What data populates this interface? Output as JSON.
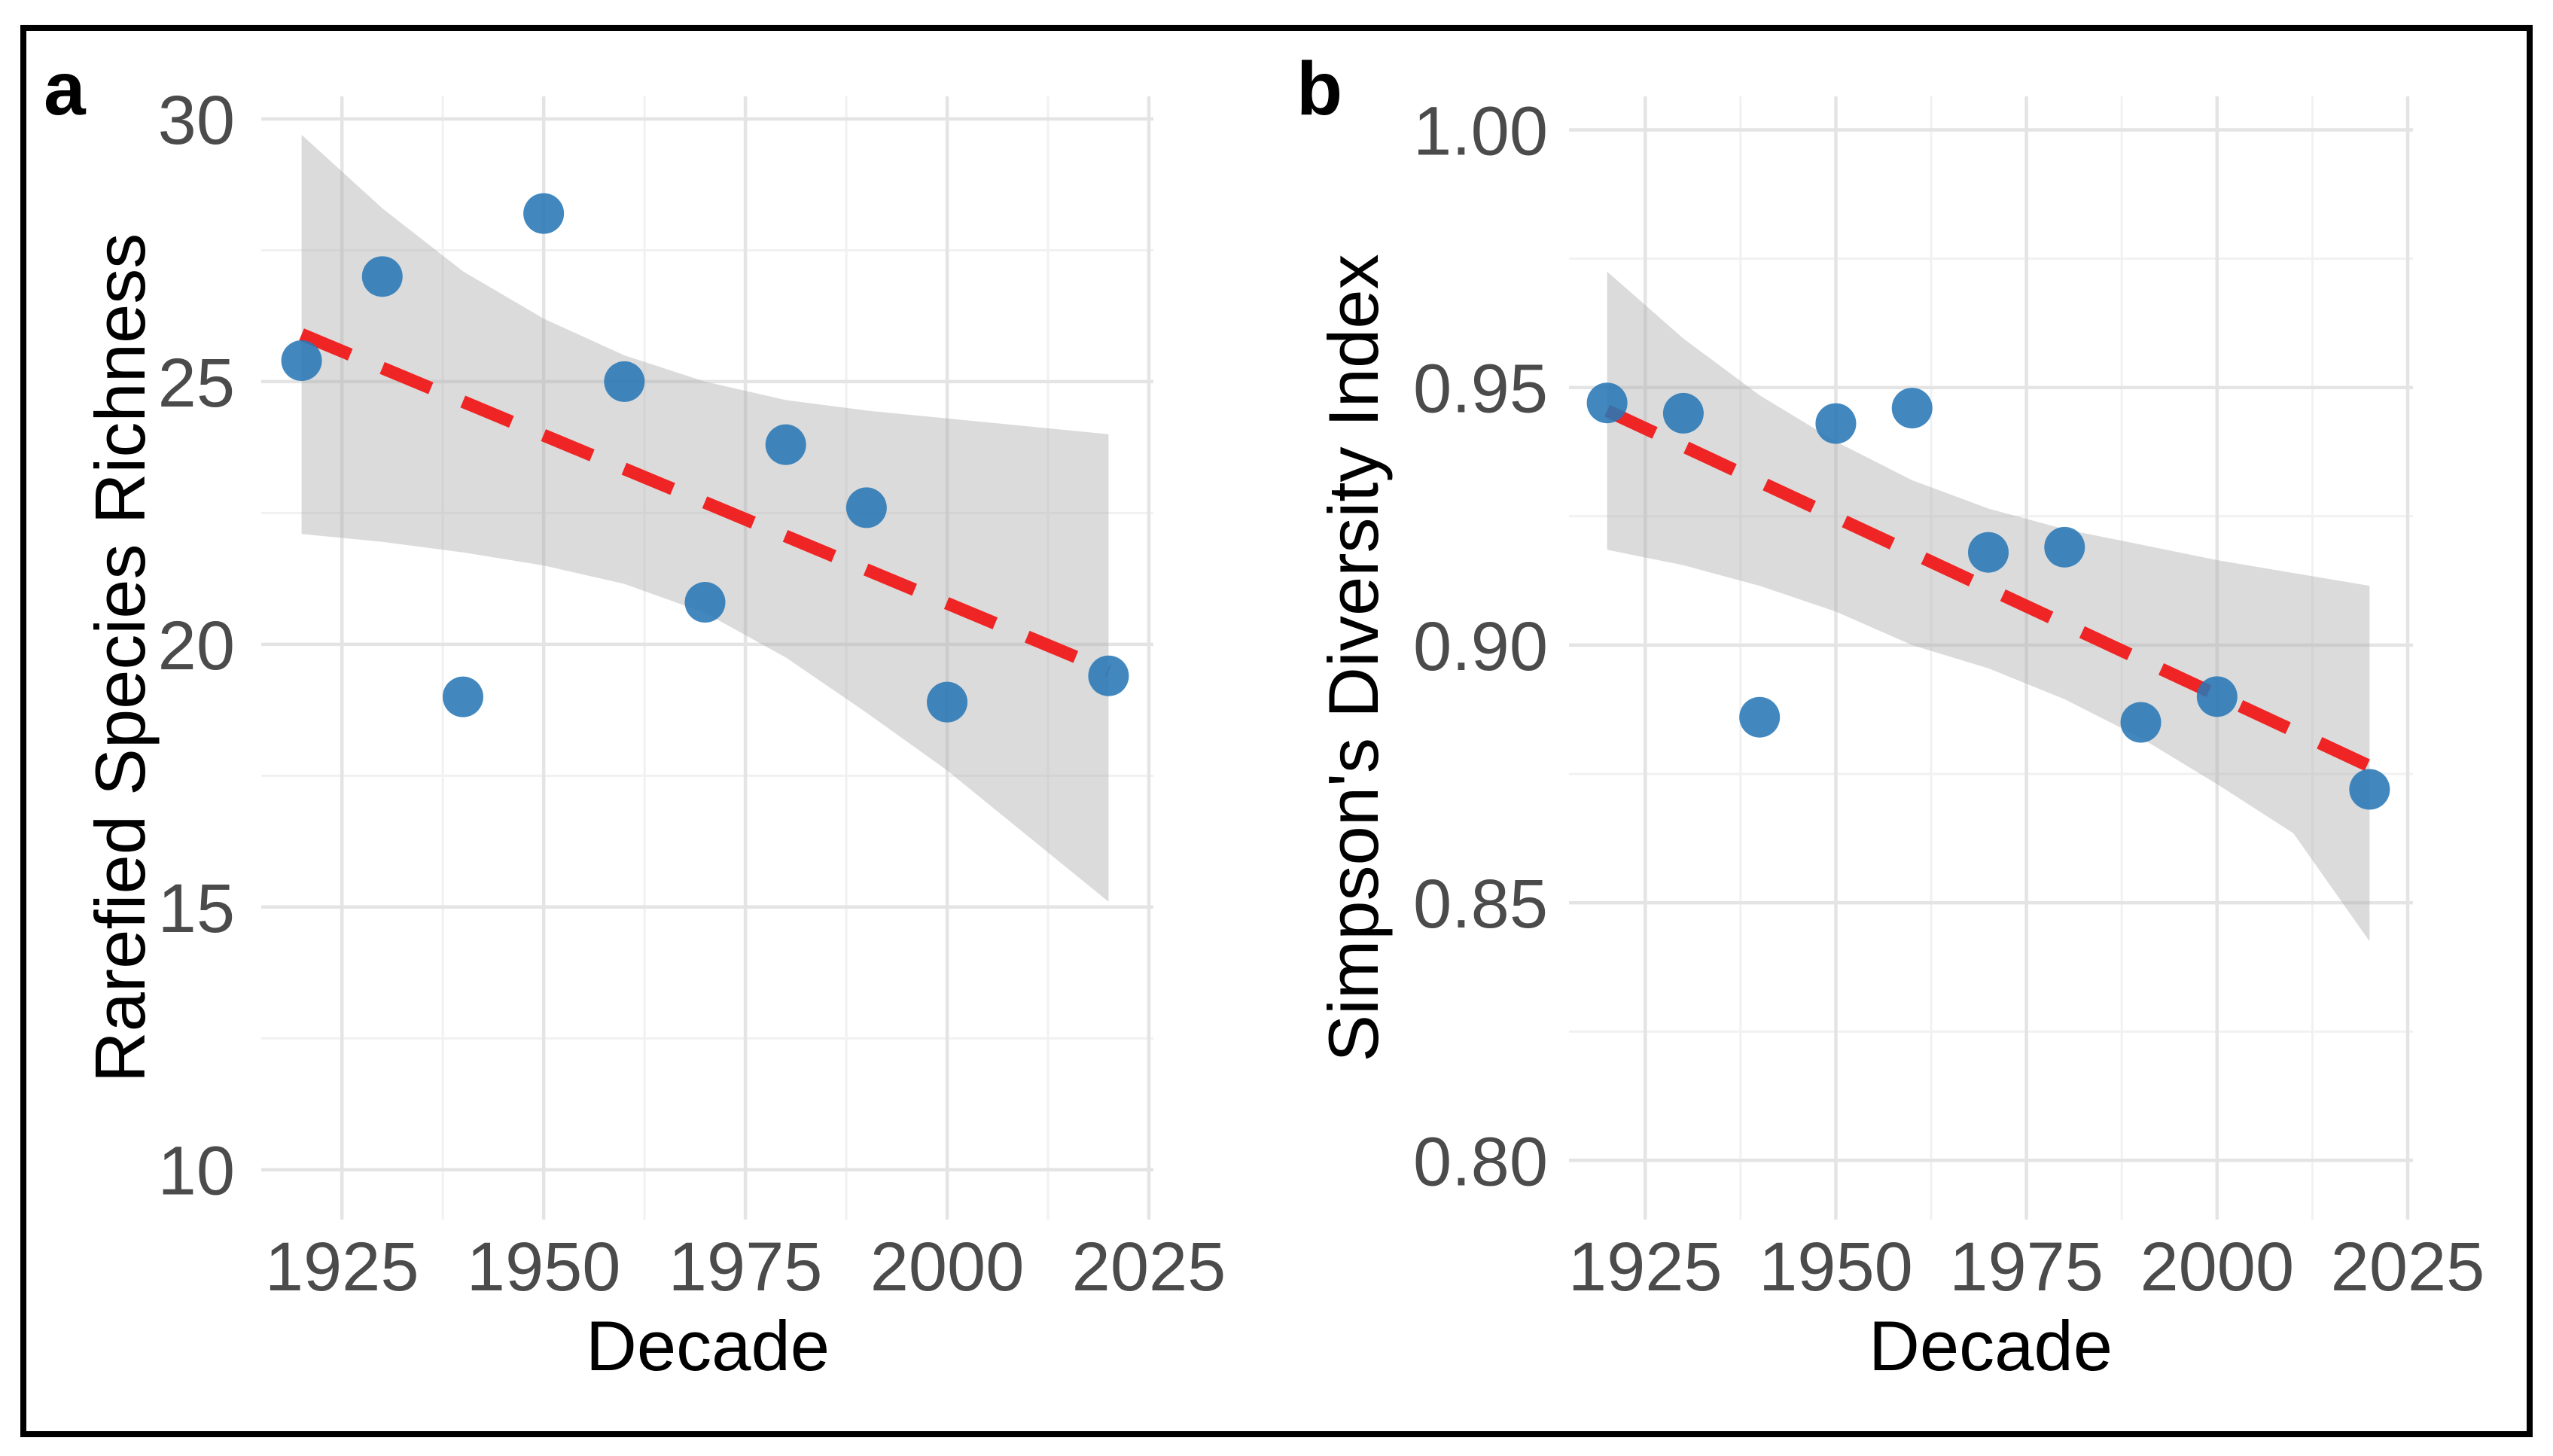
{
  "figure": {
    "background": "#ffffff",
    "border_color": "#000000"
  },
  "colors": {
    "point": "#2878B6",
    "trend": "#EE2524",
    "ribbon": "rgba(176,176,176,0.45)",
    "grid_major": "#E4E4E4",
    "grid_minor": "#F1F1F1",
    "tick_text": "#4B4B4B",
    "title_text": "#000000"
  },
  "chart_data": [
    {
      "id": "a",
      "type": "scatter",
      "panel_label": "a",
      "xlabel": "Decade",
      "ylabel": "Rarefied Species Richness",
      "legend": "none",
      "grid": "on",
      "x": [
        1920,
        1930,
        1940,
        1950,
        1960,
        1970,
        1980,
        1990,
        2000,
        2020
      ],
      "y": [
        25.4,
        27.0,
        19.0,
        28.2,
        25.0,
        20.8,
        23.8,
        22.6,
        18.9,
        19.4
      ],
      "trend": {
        "style": "dashed",
        "x": [
          1920,
          2020
        ],
        "y": [
          25.9,
          19.5
        ]
      },
      "ribbon": {
        "x": [
          1920,
          1930,
          1940,
          1950,
          1960,
          1970,
          1980,
          1990,
          2000,
          2010,
          2020
        ],
        "upper": [
          29.7,
          28.3,
          27.1,
          26.2,
          25.5,
          25.0,
          24.65,
          24.45,
          24.3,
          24.15,
          24.0
        ],
        "lower": [
          22.1,
          21.95,
          21.75,
          21.5,
          21.15,
          20.6,
          19.75,
          18.7,
          17.6,
          16.35,
          15.1
        ]
      },
      "xlim": [
        1915,
        2025
      ],
      "ylim": [
        9.05,
        30.43
      ],
      "xticks": [
        1925,
        1950,
        1975,
        2000,
        2025
      ],
      "xtick_labels": [
        "1925",
        "1950",
        "1975",
        "2000",
        "2025"
      ],
      "xminor": [
        1937.5,
        1962.5,
        1987.5,
        2012.5
      ],
      "yticks": [
        10,
        15,
        20,
        25,
        30
      ],
      "ytick_labels": [
        "10",
        "15",
        "20",
        "25",
        "30"
      ],
      "yminor": [
        12.5,
        17.5,
        22.5,
        27.5
      ]
    },
    {
      "id": "b",
      "type": "scatter",
      "panel_label": "b",
      "xlabel": "Decade",
      "ylabel": "Simpson's Diversity Index",
      "legend": "none",
      "grid": "on",
      "x": [
        1920,
        1930,
        1940,
        1950,
        1960,
        1970,
        1980,
        1990,
        2000,
        2020
      ],
      "y": [
        0.947,
        0.945,
        0.886,
        0.943,
        0.946,
        0.918,
        0.919,
        0.885,
        0.89,
        0.872
      ],
      "trend": {
        "style": "dashed",
        "x": [
          1920,
          2020
        ],
        "y": [
          0.9455,
          0.8765
        ]
      },
      "ribbon": {
        "x": [
          1920,
          1930,
          1940,
          1950,
          1960,
          1970,
          1980,
          1990,
          2000,
          2010,
          2020
        ],
        "upper": [
          0.9725,
          0.9595,
          0.9485,
          0.9395,
          0.932,
          0.9265,
          0.9225,
          0.9195,
          0.9165,
          0.914,
          0.9115
        ],
        "lower": [
          0.9185,
          0.9155,
          0.9115,
          0.9065,
          0.9,
          0.8955,
          0.8895,
          0.882,
          0.873,
          0.8635,
          0.8425
        ]
      },
      "xlim": [
        1915,
        2025
      ],
      "ylim": [
        0.7885,
        1.0065
      ],
      "xticks": [
        1925,
        1950,
        1975,
        2000,
        2025
      ],
      "xtick_labels": [
        "1925",
        "1950",
        "1975",
        "2000",
        "2025"
      ],
      "xminor": [
        1937.5,
        1962.5,
        1987.5,
        2012.5
      ],
      "yticks": [
        0.8,
        0.85,
        0.9,
        0.95,
        1.0
      ],
      "ytick_labels": [
        "0.80",
        "0.85",
        "0.90",
        "0.95",
        "1.00"
      ],
      "yminor": [
        0.825,
        0.875,
        0.925,
        0.975
      ]
    }
  ]
}
